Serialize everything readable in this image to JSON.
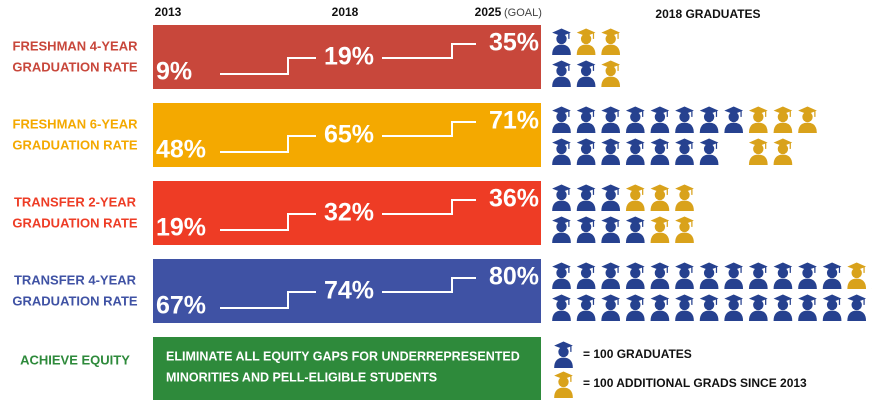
{
  "header": {
    "years": [
      "2013",
      "2018",
      "2025"
    ],
    "goal_note": "(GOAL)",
    "graduates_title": "2018 GRADUATES"
  },
  "rows": [
    {
      "label": [
        "FRESHMAN 4-YEAR",
        "GRADUATION RATE"
      ],
      "color": "#c8473b",
      "values": [
        "9%",
        "19%",
        "35%"
      ],
      "icon_lines": [
        [
          1,
          2.5
        ],
        [
          2,
          1
        ]
      ]
    },
    {
      "label": [
        "FRESHMAN 6-YEAR",
        "GRADUATION RATE"
      ],
      "color": "#f4a900",
      "values": [
        "48%",
        "65%",
        "71%"
      ],
      "icon_lines": [
        [
          8,
          3
        ],
        [
          7.5,
          2.5
        ]
      ]
    },
    {
      "label": [
        "TRANSFER 2-YEAR",
        "GRADUATION RATE"
      ],
      "color": "#ee3c25",
      "values": [
        "19%",
        "32%",
        "36%"
      ],
      "icon_lines": [
        [
          3,
          3
        ],
        [
          4,
          2
        ]
      ]
    },
    {
      "label": [
        "TRANSFER 4-YEAR",
        "GRADUATION RATE"
      ],
      "color": "#3f52a4",
      "values": [
        "67%",
        "74%",
        "80%"
      ],
      "icon_lines": [
        [
          12,
          2
        ],
        [
          13.5,
          0.5
        ]
      ]
    }
  ],
  "equity": {
    "label": "ACHIEVE EQUITY",
    "color": "#2e8a3b",
    "text": [
      "ELIMINATE ALL EQUITY GAPS FOR UNDERREPRESENTED",
      "MINORITIES AND PELL-ELIGIBLE STUDENTS"
    ]
  },
  "legend": {
    "graduates": "= 100 GRADUATES",
    "additional": "= 100 ADDITIONAL GRADS SINCE 2013"
  },
  "icon_colors": {
    "graduates": "#26418f",
    "additional": "#d9a21b"
  }
}
